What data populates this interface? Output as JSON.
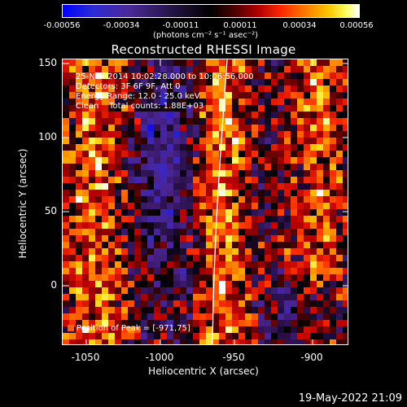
{
  "colorbar": {
    "ticks": [
      "-0.00056",
      "-0.00034",
      "-0.00011",
      "0.00011",
      "0.00034",
      "0.00056"
    ],
    "unit_label": "(photons cm⁻² s⁻¹ asec⁻²)"
  },
  "title": "Reconstructed RHESSI Image",
  "annotations": {
    "time_range": "25-Nov-2014 10:02:28.000 to 10:06:56.000",
    "detectors": "Detectors: 3F 6F 9F, Att 0",
    "energy": "Energy Range: 12.0 - 25.0 keV",
    "clean": "Clean    Total counts: 1.88E+03",
    "peak": "Position of Peak = [-971,75]"
  },
  "axes": {
    "xlabel": "Heliocentric X (arcsec)",
    "ylabel": "Heliocentric Y (arcsec)",
    "xticks": [
      "-1050",
      "-1000",
      "-950",
      "-900"
    ],
    "yticks": [
      "150",
      "100",
      "50",
      "0"
    ],
    "xlim": [
      -1072,
      -878
    ],
    "ylim": [
      -40,
      154
    ]
  },
  "footer": {
    "date": "19-May-2022 21:09"
  }
}
